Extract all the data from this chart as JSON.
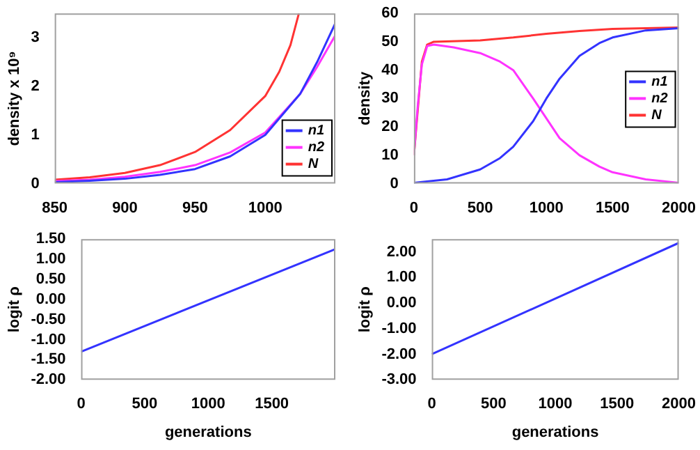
{
  "chart_data": [
    {
      "type": "line",
      "ylabel": "density x 10⁹",
      "legend": "bottom right",
      "grid": false,
      "marker": "none",
      "line_style": "solid",
      "xlim": [
        850,
        1050
      ],
      "xticks": [
        850,
        900,
        950,
        1000
      ],
      "ylim": [
        0,
        3.5
      ],
      "yticks": [
        0,
        1,
        2,
        3
      ],
      "series": [
        {
          "name": "n1",
          "color": "#3333ff",
          "x": [
            850,
            875,
            900,
            925,
            950,
            975,
            1000,
            1025,
            1037,
            1050
          ],
          "values": [
            0.03,
            0.06,
            0.1,
            0.18,
            0.3,
            0.56,
            1.0,
            1.85,
            2.5,
            3.3
          ]
        },
        {
          "name": "n2",
          "color": "#ff33ff",
          "x": [
            850,
            875,
            900,
            925,
            950,
            975,
            1000,
            1025,
            1037,
            1050
          ],
          "values": [
            0.05,
            0.08,
            0.14,
            0.24,
            0.38,
            0.64,
            1.05,
            1.85,
            2.4,
            3.05
          ]
        },
        {
          "name": "N",
          "color": "#ff3333",
          "x": [
            850,
            875,
            900,
            925,
            950,
            975,
            1000,
            1010,
            1018,
            1024
          ],
          "values": [
            0.08,
            0.13,
            0.22,
            0.38,
            0.65,
            1.1,
            1.8,
            2.3,
            2.85,
            3.5
          ]
        }
      ]
    },
    {
      "type": "line",
      "ylabel": "density",
      "legend": "right",
      "grid": false,
      "marker": "none",
      "line_style": "solid",
      "xlim": [
        0,
        2000
      ],
      "xticks": [
        0,
        500,
        1000,
        1500,
        2000
      ],
      "ylim": [
        0,
        60
      ],
      "yticks": [
        0,
        10,
        20,
        30,
        40,
        50,
        60
      ],
      "series": [
        {
          "name": "n1",
          "color": "#3333ff",
          "x": [
            0,
            250,
            500,
            650,
            750,
            900,
            1000,
            1100,
            1250,
            1400,
            1500,
            1750,
            2000
          ],
          "values": [
            0.3,
            1.5,
            5,
            9,
            13,
            22,
            30,
            37,
            45,
            49.5,
            51.5,
            54,
            54.8
          ]
        },
        {
          "name": "n2",
          "color": "#ff33ff",
          "x": [
            0,
            30,
            60,
            100,
            150,
            300,
            500,
            650,
            750,
            900,
            1000,
            1100,
            1250,
            1400,
            1500,
            1750,
            2000
          ],
          "values": [
            10,
            28,
            42,
            48.5,
            49,
            48,
            46,
            43,
            40,
            30,
            23,
            16,
            10,
            6,
            4,
            1.5,
            0.3
          ]
        },
        {
          "name": "N",
          "color": "#ff3333",
          "x": [
            0,
            60,
            100,
            150,
            500,
            750,
            1000,
            1250,
            1500,
            1750,
            2000
          ],
          "values": [
            10,
            43,
            49,
            50,
            50.5,
            51.5,
            52.8,
            53.8,
            54.5,
            54.8,
            55
          ]
        }
      ]
    },
    {
      "type": "line",
      "ylabel": "logit ρ",
      "xlabel": "generations",
      "legend": false,
      "grid": false,
      "marker": "none",
      "line_style": "solid",
      "xlim": [
        0,
        2000
      ],
      "xticks": [
        0,
        500,
        1000,
        1500
      ],
      "ylim": [
        -2,
        1.5
      ],
      "yticks": [
        {
          "value": -2,
          "label": "-2.00"
        },
        {
          "value": -1.5,
          "label": "-1.50"
        },
        {
          "value": -1,
          "label": "-1.00"
        },
        {
          "value": -0.5,
          "label": "-0.50"
        },
        {
          "value": 0,
          "label": "0.00"
        },
        {
          "value": 0.5,
          "label": "0.50"
        },
        {
          "value": 1,
          "label": "1.00"
        },
        {
          "value": 1.5,
          "label": "1.50"
        }
      ],
      "series": [
        {
          "color": "#3333ff",
          "x": [
            0,
            2000
          ],
          "values": [
            -1.3,
            1.25
          ]
        }
      ]
    },
    {
      "type": "line",
      "ylabel": "logit ρ",
      "xlabel": "generations",
      "legend": false,
      "grid": false,
      "marker": "none",
      "line_style": "solid",
      "xlim": [
        0,
        2000
      ],
      "xticks": [
        0,
        500,
        1000,
        1500,
        2000
      ],
      "ylim": [
        -3,
        2.5
      ],
      "yticks": [
        {
          "value": -3,
          "label": "-3.00"
        },
        {
          "value": -2,
          "label": "-2.00"
        },
        {
          "value": -1,
          "label": "-1.00"
        },
        {
          "value": 0,
          "label": "0.00"
        },
        {
          "value": 1,
          "label": "1.00"
        },
        {
          "value": 2,
          "label": "2.00"
        }
      ],
      "series": [
        {
          "color": "#3333ff",
          "x": [
            0,
            2000
          ],
          "values": [
            -2.0,
            2.35
          ]
        }
      ]
    }
  ]
}
